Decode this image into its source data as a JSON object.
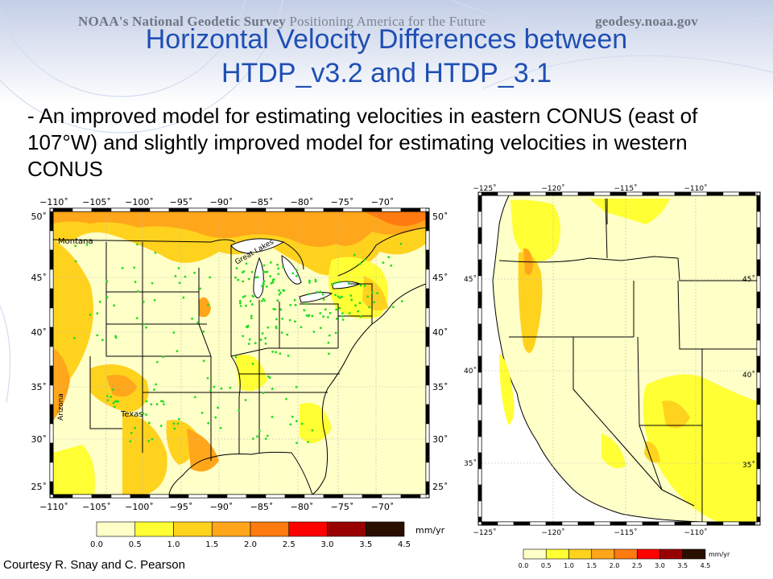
{
  "header": {
    "org": "NOAA's",
    "ngs": "National Geodetic Survey",
    "tagline": "Positioning America for the Future",
    "site": "geodesy.noaa.gov"
  },
  "title": {
    "line1": "Horizontal Velocity Differences between",
    "line2": "HTDP_v3.2 and HTDP_3.1"
  },
  "bullet": "- An improved model for estimating velocities in eastern CONUS (east of 107°W) and slightly improved model for estimating velocities in western CONUS",
  "credit": "Courtesy R. Snay and C. Pearson",
  "colors": {
    "title": "#1f4fb4",
    "scale": [
      "#ffffc8",
      "#ffff33",
      "#ffd21e",
      "#ffa61a",
      "#ff7a11",
      "#ff0000",
      "#990000",
      "#2a0f00"
    ],
    "station_dots": "#22dd22"
  },
  "map_east": {
    "lon_ticks": [
      "−110˚",
      "−105˚",
      "−100˚",
      "−95˚",
      "−90˚",
      "−85˚",
      "−80˚",
      "−75˚",
      "−70˚"
    ],
    "lat_ticks": [
      "50˚",
      "45˚",
      "40˚",
      "35˚",
      "30˚",
      "25˚"
    ],
    "labels": {
      "montana": "Montana",
      "great_lakes": "Great Lakes",
      "texas": "Texas",
      "arizona": "Arizona"
    },
    "colorbar_ticks": [
      "0.0",
      "0.5",
      "1.0",
      "1.5",
      "2.0",
      "2.5",
      "3.0",
      "3.5",
      "4.5"
    ],
    "units": "mm/yr"
  },
  "map_west": {
    "lon_ticks": [
      "−125˚",
      "−120˚",
      "−115˚",
      "−110˚"
    ],
    "lat_ticks_left": [
      "45˚",
      "40˚",
      "35˚"
    ],
    "lat_ticks_right": [
      "45˚",
      "40˚",
      "35˚"
    ],
    "colorbar_ticks": [
      "0.0",
      "0.5",
      "1.0",
      "1.5",
      "2.0",
      "2.5",
      "3.0",
      "3.5",
      "4.5"
    ],
    "units": "mm/yr"
  }
}
